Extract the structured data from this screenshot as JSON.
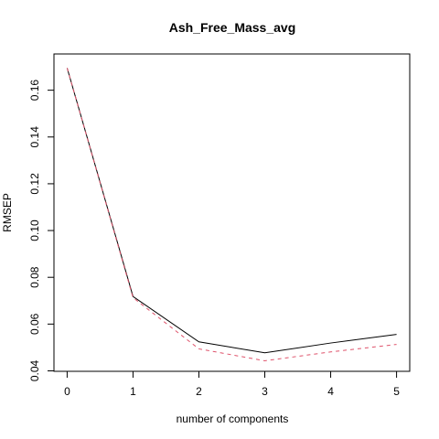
{
  "chart_data": {
    "type": "line",
    "title": "Ash_Free_Mass_avg",
    "xlabel": "number of components",
    "ylabel": "RMSEP",
    "x": [
      0,
      1,
      2,
      3,
      4,
      5
    ],
    "xlim": [
      -0.2,
      5.2
    ],
    "ylim": [
      0.0398,
      0.1755
    ],
    "xticks": [
      "0",
      "1",
      "2",
      "3",
      "4",
      "5"
    ],
    "yticks": [
      "0.04",
      "0.06",
      "0.08",
      "0.10",
      "0.12",
      "0.14",
      "0.16"
    ],
    "grid": false,
    "legend": false,
    "series": [
      {
        "values": [
          0.1695,
          0.0718,
          0.0524,
          0.0477,
          0.0519,
          0.0556
        ],
        "color": "#000000",
        "style": "solid"
      },
      {
        "values": [
          0.1695,
          0.0713,
          0.0494,
          0.0443,
          0.0481,
          0.0513
        ],
        "color": "#DF536B",
        "style": "dashed"
      }
    ]
  }
}
